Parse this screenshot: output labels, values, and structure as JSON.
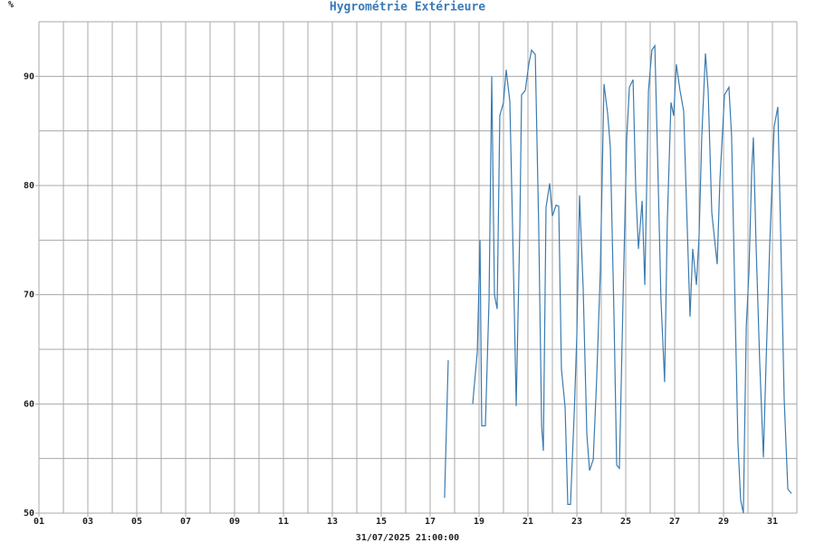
{
  "chart_data": {
    "type": "line",
    "title": "Hygrométrie Extérieure",
    "y_label": "%",
    "x_caption": "31/07/2025 21:00:00",
    "xlim": [
      1,
      32
    ],
    "ylim": [
      50,
      95
    ],
    "xticks": [
      {
        "value": 1,
        "label": "01"
      },
      {
        "value": 3,
        "label": "03"
      },
      {
        "value": 5,
        "label": "05"
      },
      {
        "value": 7,
        "label": "07"
      },
      {
        "value": 9,
        "label": "09"
      },
      {
        "value": 11,
        "label": "11"
      },
      {
        "value": 13,
        "label": "13"
      },
      {
        "value": 15,
        "label": "15"
      },
      {
        "value": 17,
        "label": "17"
      },
      {
        "value": 19,
        "label": "19"
      },
      {
        "value": 21,
        "label": "21"
      },
      {
        "value": 23,
        "label": "23"
      },
      {
        "value": 25,
        "label": "25"
      },
      {
        "value": 27,
        "label": "27"
      },
      {
        "value": 29,
        "label": "29"
      },
      {
        "value": 31,
        "label": "31"
      }
    ],
    "yticks": [
      50,
      60,
      70,
      80,
      90
    ],
    "grid": {
      "x_step": 1,
      "y_step": 5
    },
    "series": [
      {
        "name": "Hygrométrie",
        "color": "#3b7bb0",
        "x": [
          17.59,
          17.74,
          18.2,
          18.74,
          18.93,
          19.04,
          19.11,
          19.26,
          19.41,
          19.52,
          19.63,
          19.74,
          19.85,
          20.0,
          20.11,
          20.26,
          20.41,
          20.52,
          20.67,
          20.74,
          20.89,
          21.04,
          21.15,
          21.3,
          21.44,
          21.56,
          21.63,
          21.74,
          21.89,
          22.0,
          22.15,
          22.26,
          22.37,
          22.52,
          22.63,
          22.74,
          22.89,
          23.0,
          23.11,
          23.26,
          23.41,
          23.52,
          23.67,
          23.81,
          23.96,
          24.11,
          24.26,
          24.37,
          24.52,
          24.63,
          24.74,
          24.89,
          25.04,
          25.15,
          25.3,
          25.41,
          25.52,
          25.67,
          25.78,
          25.93,
          26.07,
          26.19,
          26.3,
          26.44,
          26.59,
          26.7,
          26.85,
          26.96,
          27.07,
          27.22,
          27.37,
          27.48,
          27.63,
          27.74,
          27.89,
          28.0,
          28.11,
          28.26,
          28.37,
          28.52,
          28.74,
          28.85,
          29.04,
          29.22,
          29.33,
          29.48,
          29.59,
          29.7,
          29.81,
          29.93,
          30.04,
          30.15,
          30.22,
          30.33,
          30.48,
          30.63,
          30.74,
          30.89,
          31.07,
          31.22,
          31.33,
          31.48,
          31.63,
          31.78
        ],
        "values": [
          51.4,
          64.0,
          null,
          60.0,
          64.8,
          75.0,
          58.0,
          58.0,
          69.6,
          90.0,
          70.0,
          68.7,
          86.4,
          87.6,
          90.6,
          87.7,
          72.1,
          59.8,
          76.3,
          88.3,
          88.7,
          91.2,
          92.4,
          92.0,
          76.3,
          58.0,
          55.7,
          78.0,
          80.2,
          77.2,
          78.2,
          78.1,
          63.2,
          59.7,
          50.8,
          50.8,
          59.0,
          66.3,
          79.1,
          70.5,
          57.2,
          53.9,
          54.9,
          62.2,
          72.1,
          89.3,
          86.6,
          83.5,
          68.0,
          54.4,
          54.1,
          69.6,
          84.3,
          89.0,
          89.7,
          79.6,
          74.2,
          78.6,
          70.9,
          88.7,
          92.4,
          92.8,
          82.9,
          69.6,
          62.0,
          76.7,
          87.6,
          86.4,
          91.1,
          88.7,
          86.8,
          78.7,
          68.0,
          74.2,
          70.9,
          75.4,
          84.5,
          92.1,
          88.7,
          77.5,
          72.8,
          80.4,
          88.3,
          89.0,
          84.5,
          68.0,
          56.4,
          51.2,
          50.0,
          67.1,
          72.1,
          81.2,
          84.4,
          74.6,
          63.8,
          55.1,
          63.8,
          74.6,
          85.4,
          87.2,
          76.3,
          60.5,
          52.2,
          51.8
        ]
      }
    ]
  }
}
